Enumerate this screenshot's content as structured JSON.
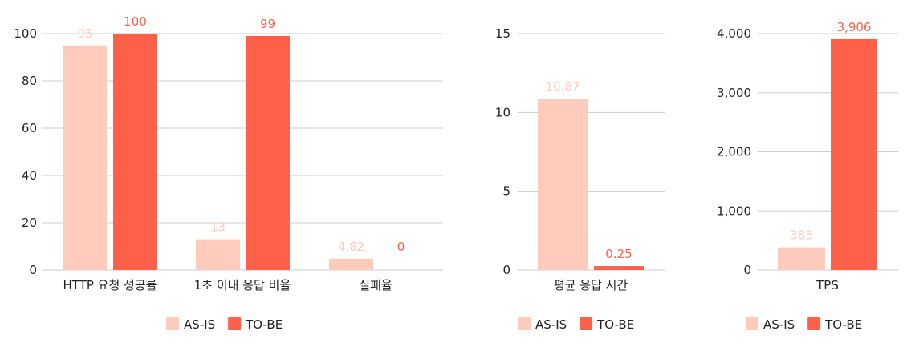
{
  "colors": {
    "as_is": "#ffcbbd",
    "to_be": "#ff604a"
  },
  "legend": [
    "AS-IS",
    "TO-BE"
  ],
  "chart_data": [
    {
      "type": "bar",
      "categories": [
        "HTTP 요청 성공률",
        "1초 이내 응답 비율",
        "실패율"
      ],
      "series": [
        {
          "name": "AS-IS",
          "values": [
            95,
            13,
            4.82
          ]
        },
        {
          "name": "TO-BE",
          "values": [
            100,
            99,
            0
          ]
        }
      ],
      "value_labels": [
        [
          "95",
          "13",
          "4.82"
        ],
        [
          "100",
          "99",
          "0"
        ]
      ],
      "yticks": [
        "0",
        "20",
        "40",
        "60",
        "80",
        "100"
      ],
      "ylim": [
        0,
        100
      ],
      "grid": true,
      "legend_position": "bottom"
    },
    {
      "type": "bar",
      "categories": [
        "평균 응답 시간"
      ],
      "series": [
        {
          "name": "AS-IS",
          "values": [
            10.87
          ]
        },
        {
          "name": "TO-BE",
          "values": [
            0.25
          ]
        }
      ],
      "value_labels": [
        [
          "10.87"
        ],
        [
          "0.25"
        ]
      ],
      "yticks": [
        "0",
        "5",
        "10",
        "15"
      ],
      "ylim": [
        0,
        15
      ],
      "grid": true,
      "legend_position": "bottom"
    },
    {
      "type": "bar",
      "categories": [
        "TPS"
      ],
      "series": [
        {
          "name": "AS-IS",
          "values": [
            385
          ]
        },
        {
          "name": "TO-BE",
          "values": [
            3906
          ]
        }
      ],
      "value_labels": [
        [
          "385"
        ],
        [
          "3,906"
        ]
      ],
      "yticks": [
        "0",
        "1,000",
        "2,000",
        "3,000",
        "4,000"
      ],
      "ylim": [
        0,
        4000
      ],
      "grid": true,
      "legend_position": "bottom"
    }
  ]
}
